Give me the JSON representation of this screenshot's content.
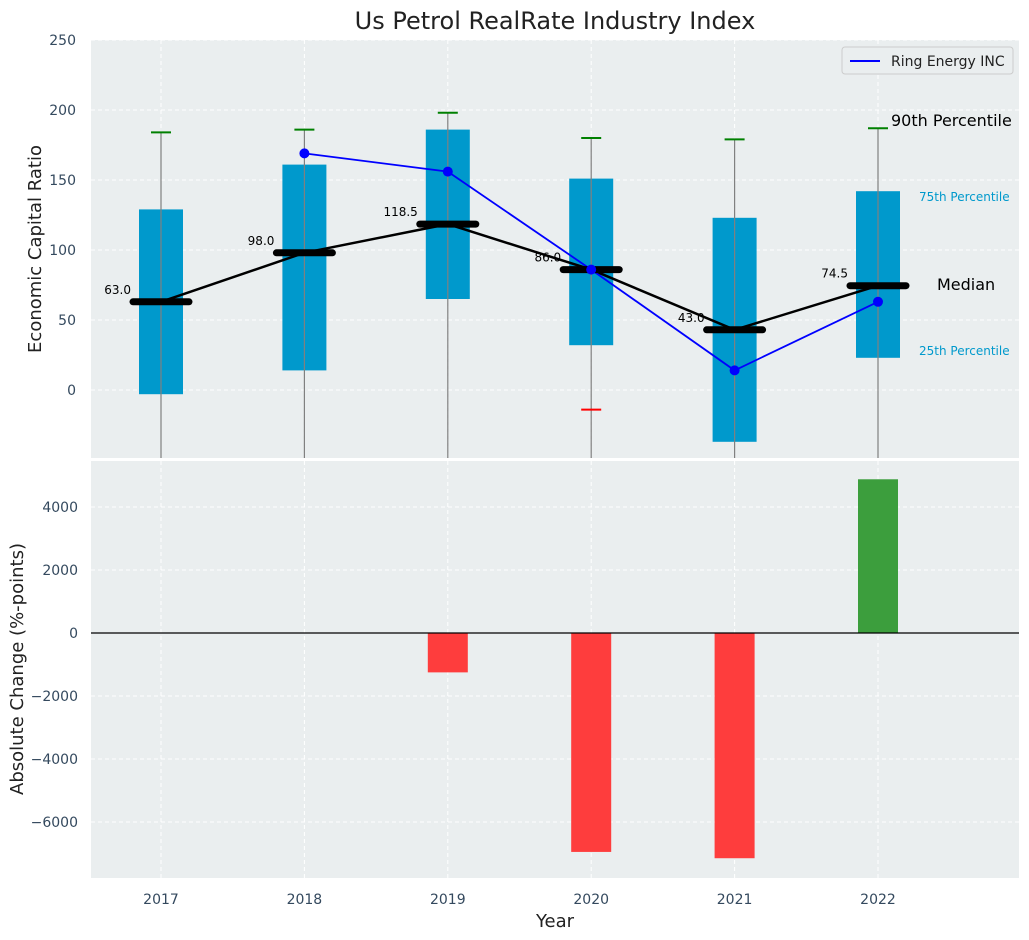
{
  "colors": {
    "panel_bg": "#eaeeef",
    "grid": "#ffffff",
    "box": "#0099cc",
    "whisker_top": "#008000",
    "whisker_bottom": "#ff0000",
    "stem": "#808080",
    "median": "#000000",
    "company": "#0000ff",
    "bar_up": "#339933",
    "bar_down": "#ff3333",
    "tick_text": "#34495e",
    "pct_label": "#0099cc"
  },
  "chart_data": [
    {
      "type": "box",
      "title": "Us Petrol RealRate Industry Index",
      "ylabel": "Economic Capital Ratio",
      "categories": [
        "2017",
        "2018",
        "2019",
        "2020",
        "2021",
        "2022"
      ],
      "ylim": [
        -48,
        250
      ],
      "yticks": [
        0,
        50,
        100,
        150,
        200,
        250
      ],
      "yticks_labels": [
        "0",
        "50",
        "100",
        "150",
        "200",
        "250"
      ],
      "p90": [
        184,
        186,
        198,
        180,
        179,
        187
      ],
      "p75": [
        129,
        161,
        186,
        151,
        123,
        142
      ],
      "median": [
        63.0,
        98.0,
        118.5,
        86.0,
        43.0,
        74.5
      ],
      "median_labels": [
        "63.0",
        "98.0",
        "118.5",
        "86.0",
        "43.0",
        "74.5"
      ],
      "p25": [
        -3,
        14,
        65,
        32,
        -37,
        23
      ],
      "p10": [
        null,
        null,
        null,
        -14,
        null,
        null
      ],
      "company_series": {
        "name": "Ring Energy INC",
        "values": [
          null,
          169,
          156,
          86,
          14,
          63
        ]
      },
      "legend": {
        "position": "top-right",
        "entries": [
          "Ring Energy INC"
        ]
      },
      "annotations": {
        "p90": "90th Percentile",
        "p75": "75th Percentile",
        "median": "Median",
        "p25": "25th Percentile"
      },
      "grid": true
    },
    {
      "type": "bar",
      "xlabel": "Year",
      "ylabel": "Absolute Change (%-points)",
      "categories": [
        "2017",
        "2018",
        "2019",
        "2020",
        "2021",
        "2022"
      ],
      "values": [
        null,
        null,
        -1250,
        -6950,
        -7150,
        4880
      ],
      "ylim": [
        -7800,
        5500
      ],
      "yticks": [
        -6000,
        -4000,
        -2000,
        0,
        2000,
        4000
      ],
      "yticks_labels": [
        "−6000",
        "−4000",
        "−2000",
        "0",
        "2000",
        "4000"
      ],
      "grid": true
    }
  ]
}
